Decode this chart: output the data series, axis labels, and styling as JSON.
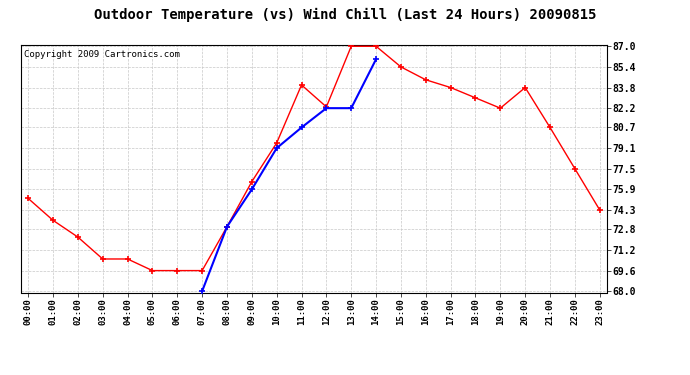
{
  "title": "Outdoor Temperature (vs) Wind Chill (Last 24 Hours) 20090815",
  "copyright": "Copyright 2009 Cartronics.com",
  "x_labels": [
    "00:00",
    "01:00",
    "02:00",
    "03:00",
    "04:00",
    "05:00",
    "06:00",
    "07:00",
    "08:00",
    "09:00",
    "10:00",
    "11:00",
    "12:00",
    "13:00",
    "14:00",
    "15:00",
    "16:00",
    "17:00",
    "18:00",
    "19:00",
    "20:00",
    "21:00",
    "22:00",
    "23:00"
  ],
  "red_y": [
    75.2,
    73.5,
    72.2,
    70.5,
    70.5,
    69.6,
    69.6,
    69.6,
    73.0,
    76.5,
    79.5,
    84.0,
    82.3,
    87.0,
    87.0,
    85.4,
    84.4,
    83.8,
    83.0,
    82.2,
    83.8,
    80.7,
    77.5,
    74.3
  ],
  "blue_x": [
    7,
    8,
    9,
    10,
    11,
    12,
    13,
    14
  ],
  "blue_y": [
    68.0,
    73.0,
    75.9,
    79.1,
    80.7,
    82.2,
    82.2,
    86.0
  ],
  "ylim_min": 68.0,
  "ylim_max": 87.0,
  "yticks": [
    68.0,
    69.6,
    71.2,
    72.8,
    74.3,
    75.9,
    77.5,
    79.1,
    80.7,
    82.2,
    83.8,
    85.4,
    87.0
  ],
  "red_color": "#ff0000",
  "blue_color": "#0000ff",
  "bg_color": "#ffffff",
  "grid_color": "#c8c8c8",
  "title_fontsize": 10,
  "copyright_fontsize": 6.5
}
